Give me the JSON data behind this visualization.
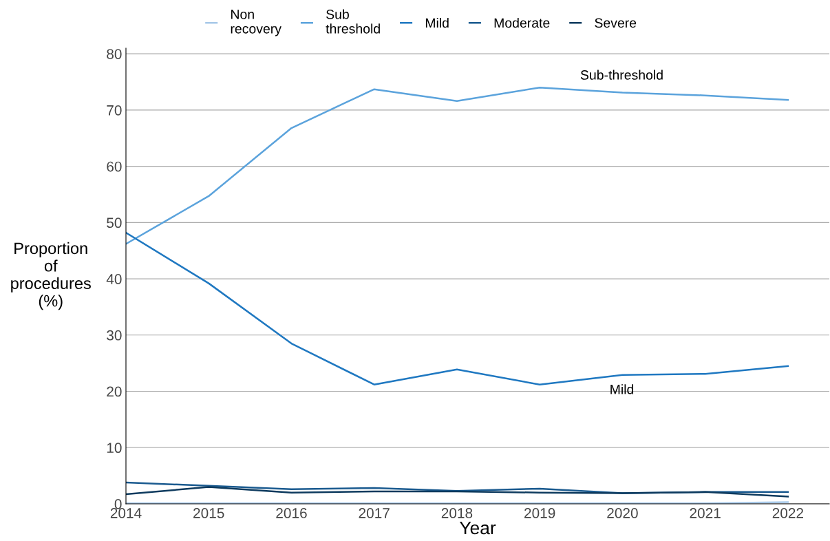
{
  "chart_data": {
    "type": "line",
    "xlabel": "Year",
    "ylabel": "Proportion\nof\nprocedures\n(%)",
    "x": [
      2014,
      2015,
      2016,
      2017,
      2018,
      2019,
      2020,
      2021,
      2022
    ],
    "series": [
      {
        "name": "Non\nrecovery",
        "color": "#a6c8e8",
        "values": [
          0.1,
          0.1,
          0.1,
          0.1,
          0.1,
          0.1,
          0.1,
          0.1,
          0.3
        ]
      },
      {
        "name": "Sub\nthreshold",
        "color": "#5ba3dc",
        "values": [
          46.2,
          54.7,
          66.8,
          73.7,
          71.6,
          74.0,
          73.1,
          72.6,
          71.8
        ]
      },
      {
        "name": "Mild",
        "color": "#1f78c1",
        "values": [
          48.2,
          39.2,
          28.5,
          21.2,
          23.9,
          21.2,
          22.9,
          23.1,
          24.5
        ]
      },
      {
        "name": "Moderate",
        "color": "#1a5a8f",
        "values": [
          3.8,
          3.2,
          2.6,
          2.8,
          2.3,
          2.7,
          1.9,
          2.1,
          2.1
        ]
      },
      {
        "name": "Severe",
        "color": "#0d3a5e",
        "values": [
          1.7,
          3.0,
          2.0,
          2.2,
          2.2,
          2.0,
          1.9,
          2.1,
          1.3
        ]
      }
    ],
    "annotations": [
      "Sub-threshold",
      "Mild"
    ],
    "xlim": [
      2014,
      2022.5
    ],
    "xticks": [
      2014,
      2015,
      2016,
      2017,
      2018,
      2019,
      2020,
      2021,
      2022
    ],
    "ylim": [
      0,
      81
    ],
    "yticks": [
      0,
      10,
      20,
      30,
      40,
      50,
      60,
      70,
      80
    ],
    "grid": "y",
    "legend": "top",
    "marker": "none",
    "line_style": "solid"
  }
}
